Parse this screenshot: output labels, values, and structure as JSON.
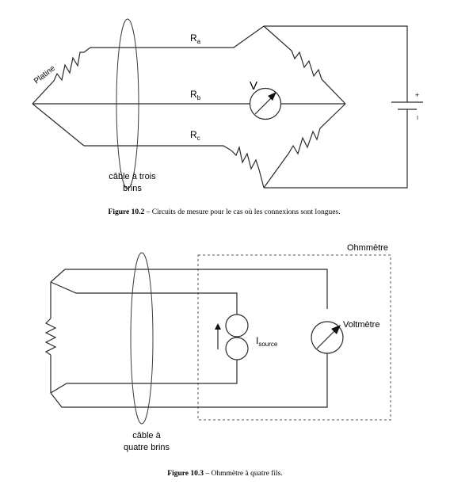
{
  "figure1": {
    "labels": {
      "platinum": "Platine",
      "ra_main": "R",
      "ra_sub": "a",
      "rb_main": "R",
      "rb_sub": "b",
      "rc_main": "R",
      "rc_sub": "c",
      "voltmeter_symbol": "V",
      "battery_plus": "+",
      "battery_minus": "I",
      "cable_line1": "câble à trois",
      "cable_line2": "brins"
    },
    "caption": {
      "label": "Figure 10.2",
      "text": " – Circuits de mesure pour le cas où les connexions sont longues."
    }
  },
  "figure2": {
    "labels": {
      "ohmmeter": "Ohmmètre",
      "voltmeter": "Voltmètre",
      "isource_main": "I",
      "isource_sub": "source",
      "cable_line1": "câble à",
      "cable_line2": "quatre brins"
    },
    "caption": {
      "label": "Figure 10.3",
      "text": " – Ohmmètre à quatre fils."
    }
  }
}
